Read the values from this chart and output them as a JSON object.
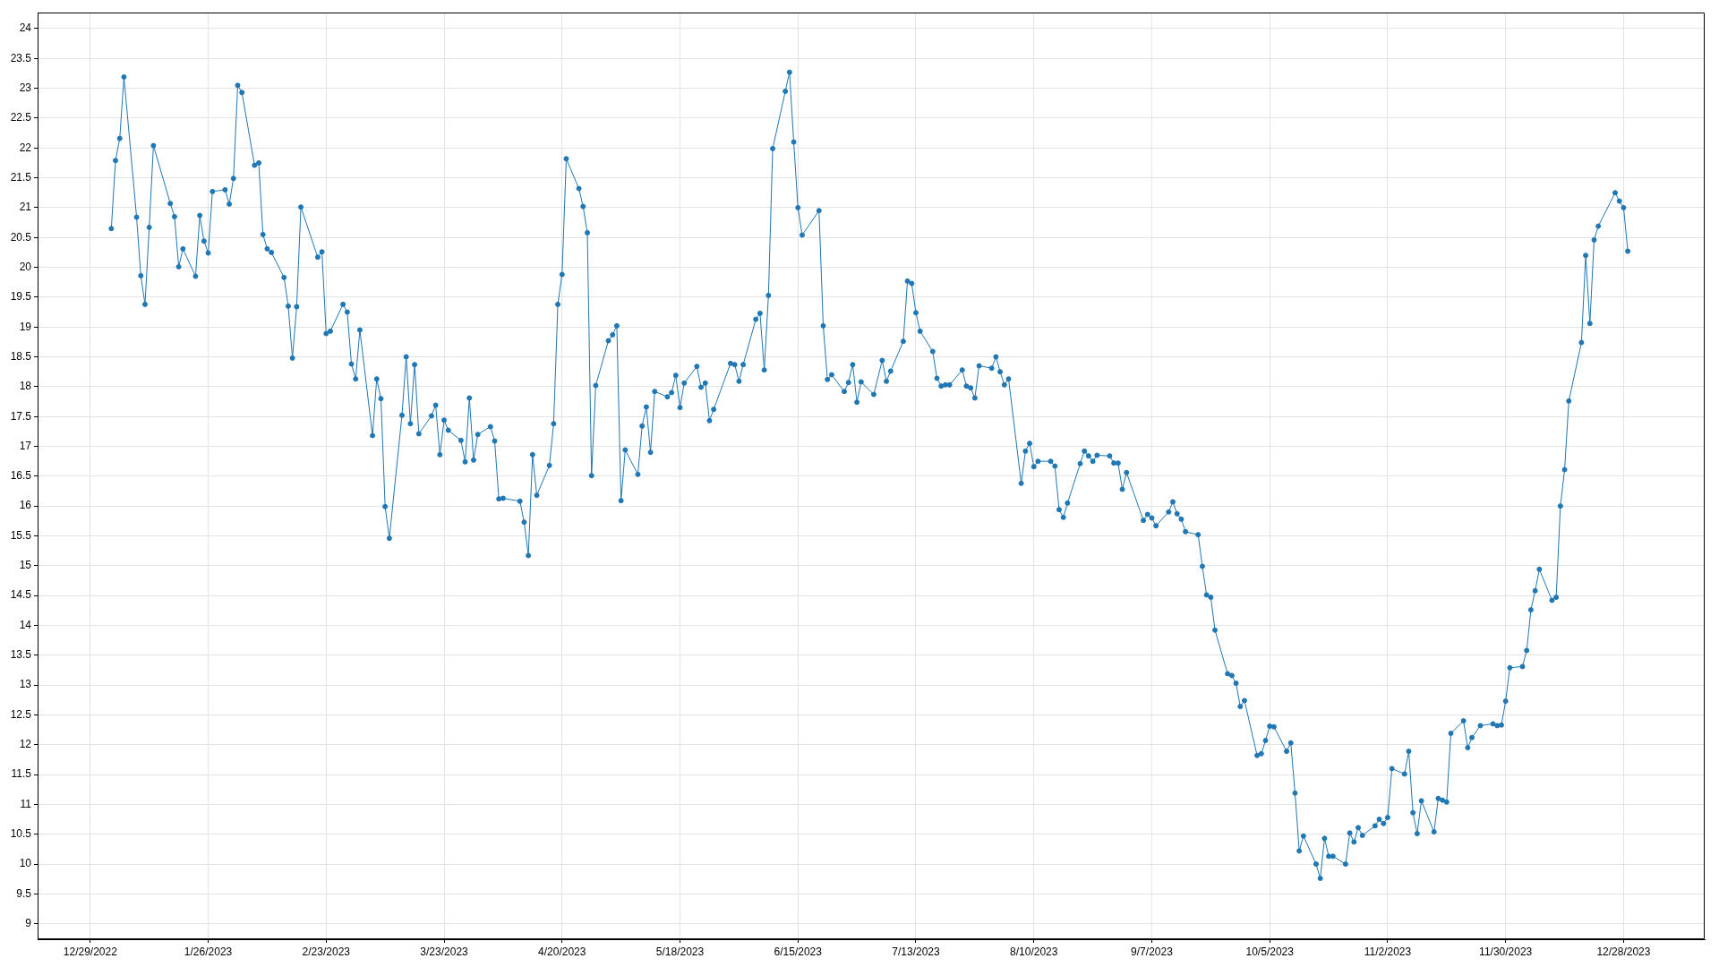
{
  "chart_data": {
    "type": "line",
    "color": "#1f77b4",
    "marker": "circle",
    "line_style": "solid",
    "grid": true,
    "xlim": [
      "2022-12-16T12:00",
      "2024-01-16T06:00"
    ],
    "ylim": [
      8.74,
      24.27
    ],
    "xticks": [
      {
        "value": "2022-12-29",
        "label": "12/29/2022"
      },
      {
        "value": "2023-01-26",
        "label": "1/26/2023"
      },
      {
        "value": "2023-02-23",
        "label": "2/23/2023"
      },
      {
        "value": "2023-03-23",
        "label": "3/23/2023"
      },
      {
        "value": "2023-04-20",
        "label": "4/20/2023"
      },
      {
        "value": "2023-05-18",
        "label": "5/18/2023"
      },
      {
        "value": "2023-06-15",
        "label": "6/15/2023"
      },
      {
        "value": "2023-07-13",
        "label": "7/13/2023"
      },
      {
        "value": "2023-08-10",
        "label": "8/10/2023"
      },
      {
        "value": "2023-09-07",
        "label": "9/7/2023"
      },
      {
        "value": "2023-10-05",
        "label": "10/5/2023"
      },
      {
        "value": "2023-11-02",
        "label": "11/2/2023"
      },
      {
        "value": "2023-11-30",
        "label": "11/30/2023"
      },
      {
        "value": "2023-12-28",
        "label": "12/28/2023"
      }
    ],
    "yticks": [
      9,
      9.5,
      10,
      10.5,
      11,
      11.5,
      12,
      12.5,
      13,
      13.5,
      14,
      14.5,
      15,
      15.5,
      16,
      16.5,
      17,
      17.5,
      18,
      18.5,
      19,
      19.5,
      20,
      20.5,
      21,
      21.5,
      22,
      22.5,
      23,
      23.5,
      24
    ],
    "x": [
      "2023-01-03",
      "2023-01-04",
      "2023-01-05",
      "2023-01-06",
      "2023-01-09",
      "2023-01-10",
      "2023-01-11",
      "2023-01-12",
      "2023-01-13",
      "2023-01-17",
      "2023-01-18",
      "2023-01-19",
      "2023-01-20",
      "2023-01-23",
      "2023-01-24",
      "2023-01-25",
      "2023-01-26",
      "2023-01-27",
      "2023-01-30",
      "2023-01-31",
      "2023-02-01",
      "2023-02-02",
      "2023-02-03",
      "2023-02-06",
      "2023-02-07",
      "2023-02-08",
      "2023-02-09",
      "2023-02-10",
      "2023-02-13",
      "2023-02-14",
      "2023-02-15",
      "2023-02-16",
      "2023-02-17",
      "2023-02-21",
      "2023-02-22",
      "2023-02-23",
      "2023-02-24",
      "2023-02-27",
      "2023-02-28",
      "2023-03-01",
      "2023-03-02",
      "2023-03-03",
      "2023-03-06",
      "2023-03-07",
      "2023-03-08",
      "2023-03-09",
      "2023-03-10",
      "2023-03-13",
      "2023-03-14",
      "2023-03-15",
      "2023-03-16",
      "2023-03-17",
      "2023-03-20",
      "2023-03-21",
      "2023-03-22",
      "2023-03-23",
      "2023-03-24",
      "2023-03-27",
      "2023-03-28",
      "2023-03-29",
      "2023-03-30",
      "2023-03-31",
      "2023-04-03",
      "2023-04-04",
      "2023-04-05",
      "2023-04-06",
      "2023-04-10",
      "2023-04-11",
      "2023-04-12",
      "2023-04-13",
      "2023-04-14",
      "2023-04-17",
      "2023-04-18",
      "2023-04-19",
      "2023-04-20",
      "2023-04-21",
      "2023-04-24",
      "2023-04-25",
      "2023-04-26",
      "2023-04-27",
      "2023-04-28",
      "2023-05-01",
      "2023-05-02",
      "2023-05-03",
      "2023-05-04",
      "2023-05-05",
      "2023-05-08",
      "2023-05-09",
      "2023-05-10",
      "2023-05-11",
      "2023-05-12",
      "2023-05-15",
      "2023-05-16",
      "2023-05-17",
      "2023-05-18",
      "2023-05-19",
      "2023-05-22",
      "2023-05-23",
      "2023-05-24",
      "2023-05-25",
      "2023-05-26",
      "2023-05-30",
      "2023-05-31",
      "2023-06-01",
      "2023-06-02",
      "2023-06-05",
      "2023-06-06",
      "2023-06-07",
      "2023-06-08",
      "2023-06-09",
      "2023-06-12",
      "2023-06-13",
      "2023-06-14",
      "2023-06-15",
      "2023-06-16",
      "2023-06-20",
      "2023-06-21",
      "2023-06-22",
      "2023-06-23",
      "2023-06-26",
      "2023-06-27",
      "2023-06-28",
      "2023-06-29",
      "2023-06-30",
      "2023-07-03",
      "2023-07-05",
      "2023-07-06",
      "2023-07-07",
      "2023-07-10",
      "2023-07-11",
      "2023-07-12",
      "2023-07-13",
      "2023-07-14",
      "2023-07-17",
      "2023-07-18",
      "2023-07-19",
      "2023-07-20",
      "2023-07-21",
      "2023-07-24",
      "2023-07-25",
      "2023-07-26",
      "2023-07-27",
      "2023-07-28",
      "2023-07-31",
      "2023-08-01",
      "2023-08-02",
      "2023-08-03",
      "2023-08-04",
      "2023-08-07",
      "2023-08-08",
      "2023-08-09",
      "2023-08-10",
      "2023-08-11",
      "2023-08-14",
      "2023-08-15",
      "2023-08-16",
      "2023-08-17",
      "2023-08-18",
      "2023-08-21",
      "2023-08-22",
      "2023-08-23",
      "2023-08-24",
      "2023-08-25",
      "2023-08-28",
      "2023-08-29",
      "2023-08-30",
      "2023-08-31",
      "2023-09-01",
      "2023-09-05",
      "2023-09-06",
      "2023-09-07",
      "2023-09-08",
      "2023-09-11",
      "2023-09-12",
      "2023-09-13",
      "2023-09-14",
      "2023-09-15",
      "2023-09-18",
      "2023-09-19",
      "2023-09-20",
      "2023-09-21",
      "2023-09-22",
      "2023-09-25",
      "2023-09-26",
      "2023-09-27",
      "2023-09-28",
      "2023-09-29",
      "2023-10-02",
      "2023-10-03",
      "2023-10-04",
      "2023-10-05",
      "2023-10-06",
      "2023-10-09",
      "2023-10-10",
      "2023-10-11",
      "2023-10-12",
      "2023-10-13",
      "2023-10-16",
      "2023-10-17",
      "2023-10-18",
      "2023-10-19",
      "2023-10-20",
      "2023-10-23",
      "2023-10-24",
      "2023-10-25",
      "2023-10-26",
      "2023-10-27",
      "2023-10-30",
      "2023-10-31",
      "2023-11-01",
      "2023-11-02",
      "2023-11-03",
      "2023-11-06",
      "2023-11-07",
      "2023-11-08",
      "2023-11-09",
      "2023-11-10",
      "2023-11-13",
      "2023-11-14",
      "2023-11-15",
      "2023-11-16",
      "2023-11-17",
      "2023-11-20",
      "2023-11-21",
      "2023-11-22",
      "2023-11-24",
      "2023-11-27",
      "2023-11-28",
      "2023-11-29",
      "2023-11-30",
      "2023-12-01",
      "2023-12-04",
      "2023-12-05",
      "2023-12-06",
      "2023-12-07",
      "2023-12-08",
      "2023-12-11",
      "2023-12-12",
      "2023-12-13",
      "2023-12-14",
      "2023-12-15",
      "2023-12-18",
      "2023-12-19",
      "2023-12-20",
      "2023-12-21",
      "2023-12-22",
      "2023-12-26",
      "2023-12-27",
      "2023-12-28",
      "2023-12-29"
    ],
    "values": [
      20.65,
      21.79,
      22.16,
      23.19,
      20.84,
      19.86,
      19.38,
      20.67,
      22.04,
      21.07,
      20.85,
      20.01,
      20.31,
      19.85,
      20.87,
      20.44,
      20.24,
      21.27,
      21.3,
      21.06,
      21.49,
      23.05,
      22.93,
      21.71,
      21.75,
      20.55,
      20.31,
      20.25,
      19.83,
      19.35,
      18.48,
      19.34,
      21.01,
      20.17,
      20.26,
      18.89,
      18.93,
      19.38,
      19.25,
      18.38,
      18.13,
      18.95,
      17.18,
      18.13,
      17.8,
      15.99,
      15.46,
      17.52,
      18.5,
      17.38,
      18.37,
      17.21,
      17.51,
      17.69,
      16.86,
      17.44,
      17.27,
      17.1,
      16.74,
      17.81,
      16.77,
      17.2,
      17.33,
      17.09,
      16.12,
      16.13,
      16.08,
      15.73,
      15.17,
      16.86,
      16.18,
      16.68,
      17.38,
      19.38,
      19.88,
      21.82,
      21.32,
      21.02,
      20.58,
      16.51,
      18.02,
      18.77,
      18.87,
      19.02,
      16.09,
      16.94,
      16.53,
      17.34,
      17.66,
      16.9,
      17.92,
      17.83,
      17.9,
      18.19,
      17.65,
      18.06,
      18.34,
      17.99,
      18.06,
      17.43,
      17.62,
      18.39,
      18.37,
      18.09,
      18.37,
      19.13,
      19.23,
      18.28,
      19.53,
      21.99,
      22.95,
      23.27,
      22.1,
      21.0,
      20.54,
      20.95,
      19.02,
      18.12,
      18.2,
      17.92,
      18.07,
      18.37,
      17.74,
      18.08,
      17.87,
      18.44,
      18.09,
      18.26,
      18.76,
      19.77,
      19.73,
      19.24,
      18.93,
      18.59,
      18.14,
      18.01,
      18.03,
      18.03,
      18.28,
      18.01,
      17.98,
      17.81,
      18.35,
      18.31,
      18.5,
      18.25,
      18.03,
      18.13,
      16.38,
      16.92,
      17.05,
      16.66,
      16.75,
      16.75,
      16.67,
      15.94,
      15.81,
      16.05,
      16.71,
      16.92,
      16.84,
      16.75,
      16.85,
      16.84,
      16.72,
      16.72,
      16.28,
      16.56,
      15.76,
      15.86,
      15.8,
      15.67,
      15.9,
      16.07,
      15.87,
      15.78,
      15.57,
      15.52,
      14.99,
      14.51,
      14.47,
      13.92,
      13.19,
      13.16,
      13.03,
      12.64,
      12.74,
      11.82,
      11.85,
      12.07,
      12.31,
      12.3,
      11.89,
      12.03,
      11.19,
      10.22,
      10.47,
      10.0,
      9.76,
      10.43,
      10.13,
      10.13,
      10.0,
      10.52,
      10.37,
      10.61,
      10.48,
      10.64,
      10.75,
      10.68,
      10.78,
      11.6,
      11.51,
      11.89,
      10.86,
      10.51,
      11.06,
      10.54,
      11.1,
      11.07,
      11.04,
      12.19,
      12.4,
      11.95,
      12.12,
      12.32,
      12.35,
      12.32,
      12.33,
      12.73,
      13.29,
      13.31,
      13.58,
      14.26,
      14.58,
      14.94,
      14.42,
      14.47,
      16.0,
      16.61,
      17.76,
      18.74,
      20.2,
      19.06,
      20.46,
      20.69,
      21.25,
      21.11,
      21.0,
      20.27
    ]
  }
}
